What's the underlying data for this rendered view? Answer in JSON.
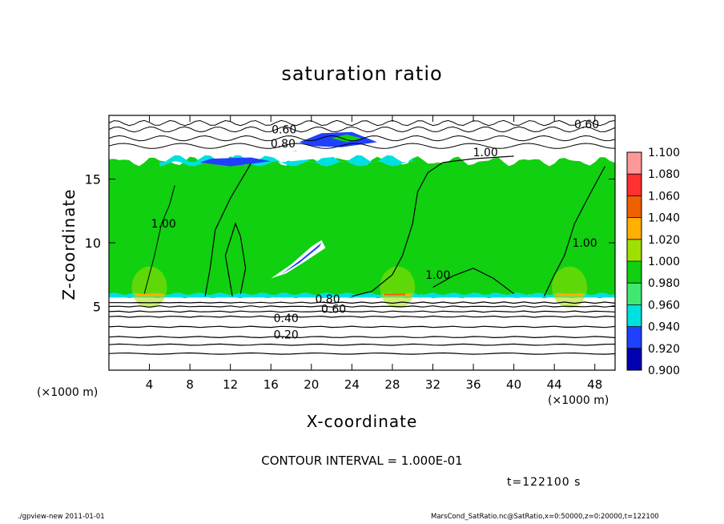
{
  "chart_data": {
    "type": "heatmap",
    "title": "saturation ratio",
    "xlabel": "X-coordinate",
    "ylabel": "Z-coordinate",
    "x_unit_label": "(×1000 m)",
    "xlim": [
      0,
      50
    ],
    "ylim": [
      0,
      20
    ],
    "x_ticks": [
      4,
      8,
      12,
      16,
      20,
      24,
      28,
      32,
      36,
      40,
      44,
      48
    ],
    "y_ticks": [
      5,
      10,
      15
    ],
    "colorbar": {
      "levels": [
        "1.100",
        "1.080",
        "1.060",
        "1.040",
        "1.020",
        "1.000",
        "0.980",
        "0.960",
        "0.940",
        "0.920",
        "0.900"
      ],
      "colors": [
        "#ff9999",
        "#ff3030",
        "#ee6000",
        "#ffb000",
        "#9ee000",
        "#10d010",
        "#40e870",
        "#00e0e0",
        "#2040ff",
        "#0000b0",
        "#6010a0"
      ]
    },
    "contour_labels": [
      {
        "text": "0.60",
        "x": 17.3,
        "z": 18.9
      },
      {
        "text": "0.80",
        "x": 17.2,
        "z": 17.8
      },
      {
        "text": "0.60",
        "x": 47.2,
        "z": 19.3
      },
      {
        "text": "1.00",
        "x": 37.2,
        "z": 17.1
      },
      {
        "text": "1.00",
        "x": 5.4,
        "z": 11.5
      },
      {
        "text": "1.00",
        "x": 47.0,
        "z": 10.0
      },
      {
        "text": "1.00",
        "x": 32.5,
        "z": 7.5
      },
      {
        "text": "0.80",
        "x": 21.6,
        "z": 5.6
      },
      {
        "text": "0.60",
        "x": 22.2,
        "z": 4.8
      },
      {
        "text": "0.40",
        "x": 17.5,
        "z": 4.1
      },
      {
        "text": "0.20",
        "x": 17.5,
        "z": 2.8
      }
    ],
    "contour_interval": "CONTOUR INTERVAL = 1.000E-01",
    "time": "t=122100 s"
  },
  "footer": {
    "program": "./gpview-new   2011-01-01",
    "source": "MarsCond_SatRatio.nc@SatRatio,x=0:50000,z=0:20000,t=122100"
  }
}
